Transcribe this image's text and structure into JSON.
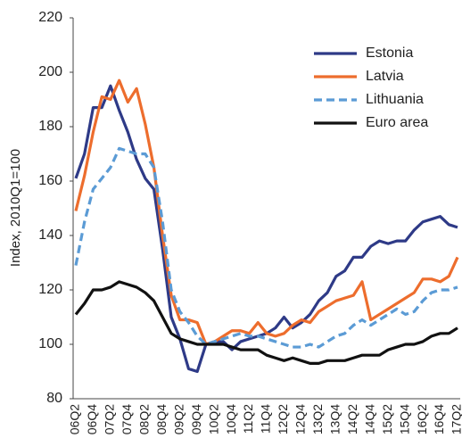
{
  "chart_data": {
    "type": "line",
    "y_label": "Index, 2010Q1=100",
    "categories": [
      "06Q2",
      null,
      "06Q4",
      null,
      "07Q2",
      null,
      "07Q4",
      null,
      "08Q2",
      null,
      "08Q4",
      null,
      "09Q2",
      null,
      "09Q4",
      null,
      "10Q2",
      null,
      "10Q4",
      null,
      "11Q2",
      null,
      "11Q4",
      null,
      "12Q2",
      null,
      "12Q4",
      null,
      "13Q2",
      null,
      "13Q4",
      null,
      "14Q2",
      null,
      "14Q4",
      null,
      "15Q2",
      null,
      "15Q4",
      null,
      "16Q2",
      null,
      "16Q4",
      null,
      "17Q2"
    ],
    "series": [
      {
        "name": "Estonia",
        "color": "#2e3a87",
        "dashed": false,
        "values": [
          161,
          170,
          187,
          187,
          195,
          186,
          178,
          168,
          161,
          157,
          135,
          110,
          102,
          91,
          90,
          100,
          101,
          101,
          98,
          101,
          102,
          103,
          104,
          106,
          110,
          106,
          108,
          111,
          116,
          119,
          125,
          127,
          132,
          132,
          136,
          138,
          137,
          138,
          138,
          142,
          145,
          146,
          147,
          144,
          143
        ]
      },
      {
        "name": "Latvia",
        "color": "#ed6d2d",
        "dashed": false,
        "values": [
          149,
          162,
          178,
          191,
          190,
          197,
          189,
          194,
          181,
          165,
          140,
          118,
          109,
          109,
          108,
          100,
          101,
          103,
          105,
          105,
          104,
          108,
          104,
          103,
          104,
          107,
          109,
          108,
          112,
          114,
          116,
          117,
          118,
          123,
          109,
          111,
          113,
          115,
          117,
          119,
          124,
          124,
          123,
          125,
          132
        ]
      },
      {
        "name": "Lithuania",
        "color": "#5b9bd5",
        "dashed": true,
        "values": [
          129,
          145,
          157,
          161,
          165,
          172,
          171,
          170,
          170,
          165,
          145,
          120,
          112,
          108,
          103,
          100,
          101,
          102,
          103,
          104,
          103,
          103,
          102,
          101,
          100,
          99,
          99,
          100,
          99,
          101,
          103,
          104,
          107,
          109,
          107,
          109,
          111,
          113,
          111,
          112,
          116,
          119,
          120,
          120,
          121
        ]
      },
      {
        "name": "Euro area",
        "color": "#111111",
        "dashed": false,
        "values": [
          111,
          115,
          120,
          120,
          121,
          123,
          122,
          121,
          119,
          116,
          110,
          104,
          102,
          101,
          100,
          100,
          100,
          100,
          99,
          98,
          98,
          98,
          96,
          95,
          94,
          95,
          94,
          93,
          93,
          94,
          94,
          94,
          95,
          96,
          96,
          96,
          98,
          99,
          100,
          100,
          101,
          103,
          104,
          104,
          106
        ]
      }
    ],
    "ylim": [
      80,
      220
    ],
    "yticks": [
      80,
      100,
      120,
      140,
      160,
      180,
      200,
      220
    ],
    "grid": false,
    "legend": "top-right"
  }
}
